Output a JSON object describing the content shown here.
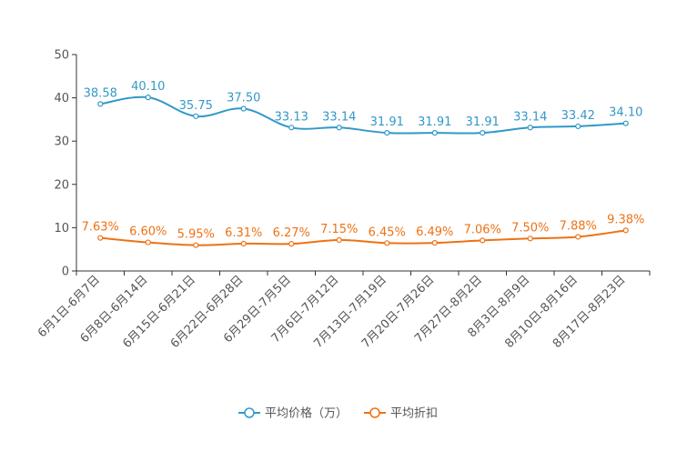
{
  "chart_data": {
    "type": "line",
    "title": "",
    "xlabel": "",
    "ylabel": "",
    "ylim": [
      0,
      50
    ],
    "yticks": [
      0,
      10,
      20,
      30,
      40,
      50
    ],
    "grid": false,
    "legend_position": "bottom-center",
    "categories": [
      "6月1日-6月7日",
      "6月8日-6月14日",
      "6月15日-6月21日",
      "6月22日-6月28日",
      "6月29日-7月5日",
      "7月6日-7月12日",
      "7月13日-7月19日",
      "7月20日-7月26日",
      "7月27日-8月2日",
      "8月3日-8月9日",
      "8月10日-8月16日",
      "8月17日-8月23日"
    ],
    "series": [
      {
        "name": "平均价格（万）",
        "color": "#3398c8",
        "values": [
          38.58,
          40.1,
          35.75,
          37.5,
          33.13,
          33.14,
          31.91,
          31.91,
          31.91,
          33.14,
          33.42,
          34.1
        ],
        "labels": [
          "38.58",
          "40.10",
          "35.75",
          "37.50",
          "33.13",
          "33.14",
          "31.91",
          "31.91",
          "31.91",
          "33.14",
          "33.42",
          "34.10"
        ]
      },
      {
        "name": "平均折扣",
        "color": "#ee7214",
        "values": [
          7.63,
          6.6,
          5.95,
          6.31,
          6.27,
          7.15,
          6.45,
          6.49,
          7.06,
          7.5,
          7.88,
          9.38
        ],
        "labels": [
          "7.63%",
          "6.60%",
          "5.95%",
          "6.31%",
          "6.27%",
          "7.15%",
          "6.45%",
          "6.49%",
          "7.06%",
          "7.50%",
          "7.88%",
          "9.38%"
        ]
      }
    ]
  }
}
